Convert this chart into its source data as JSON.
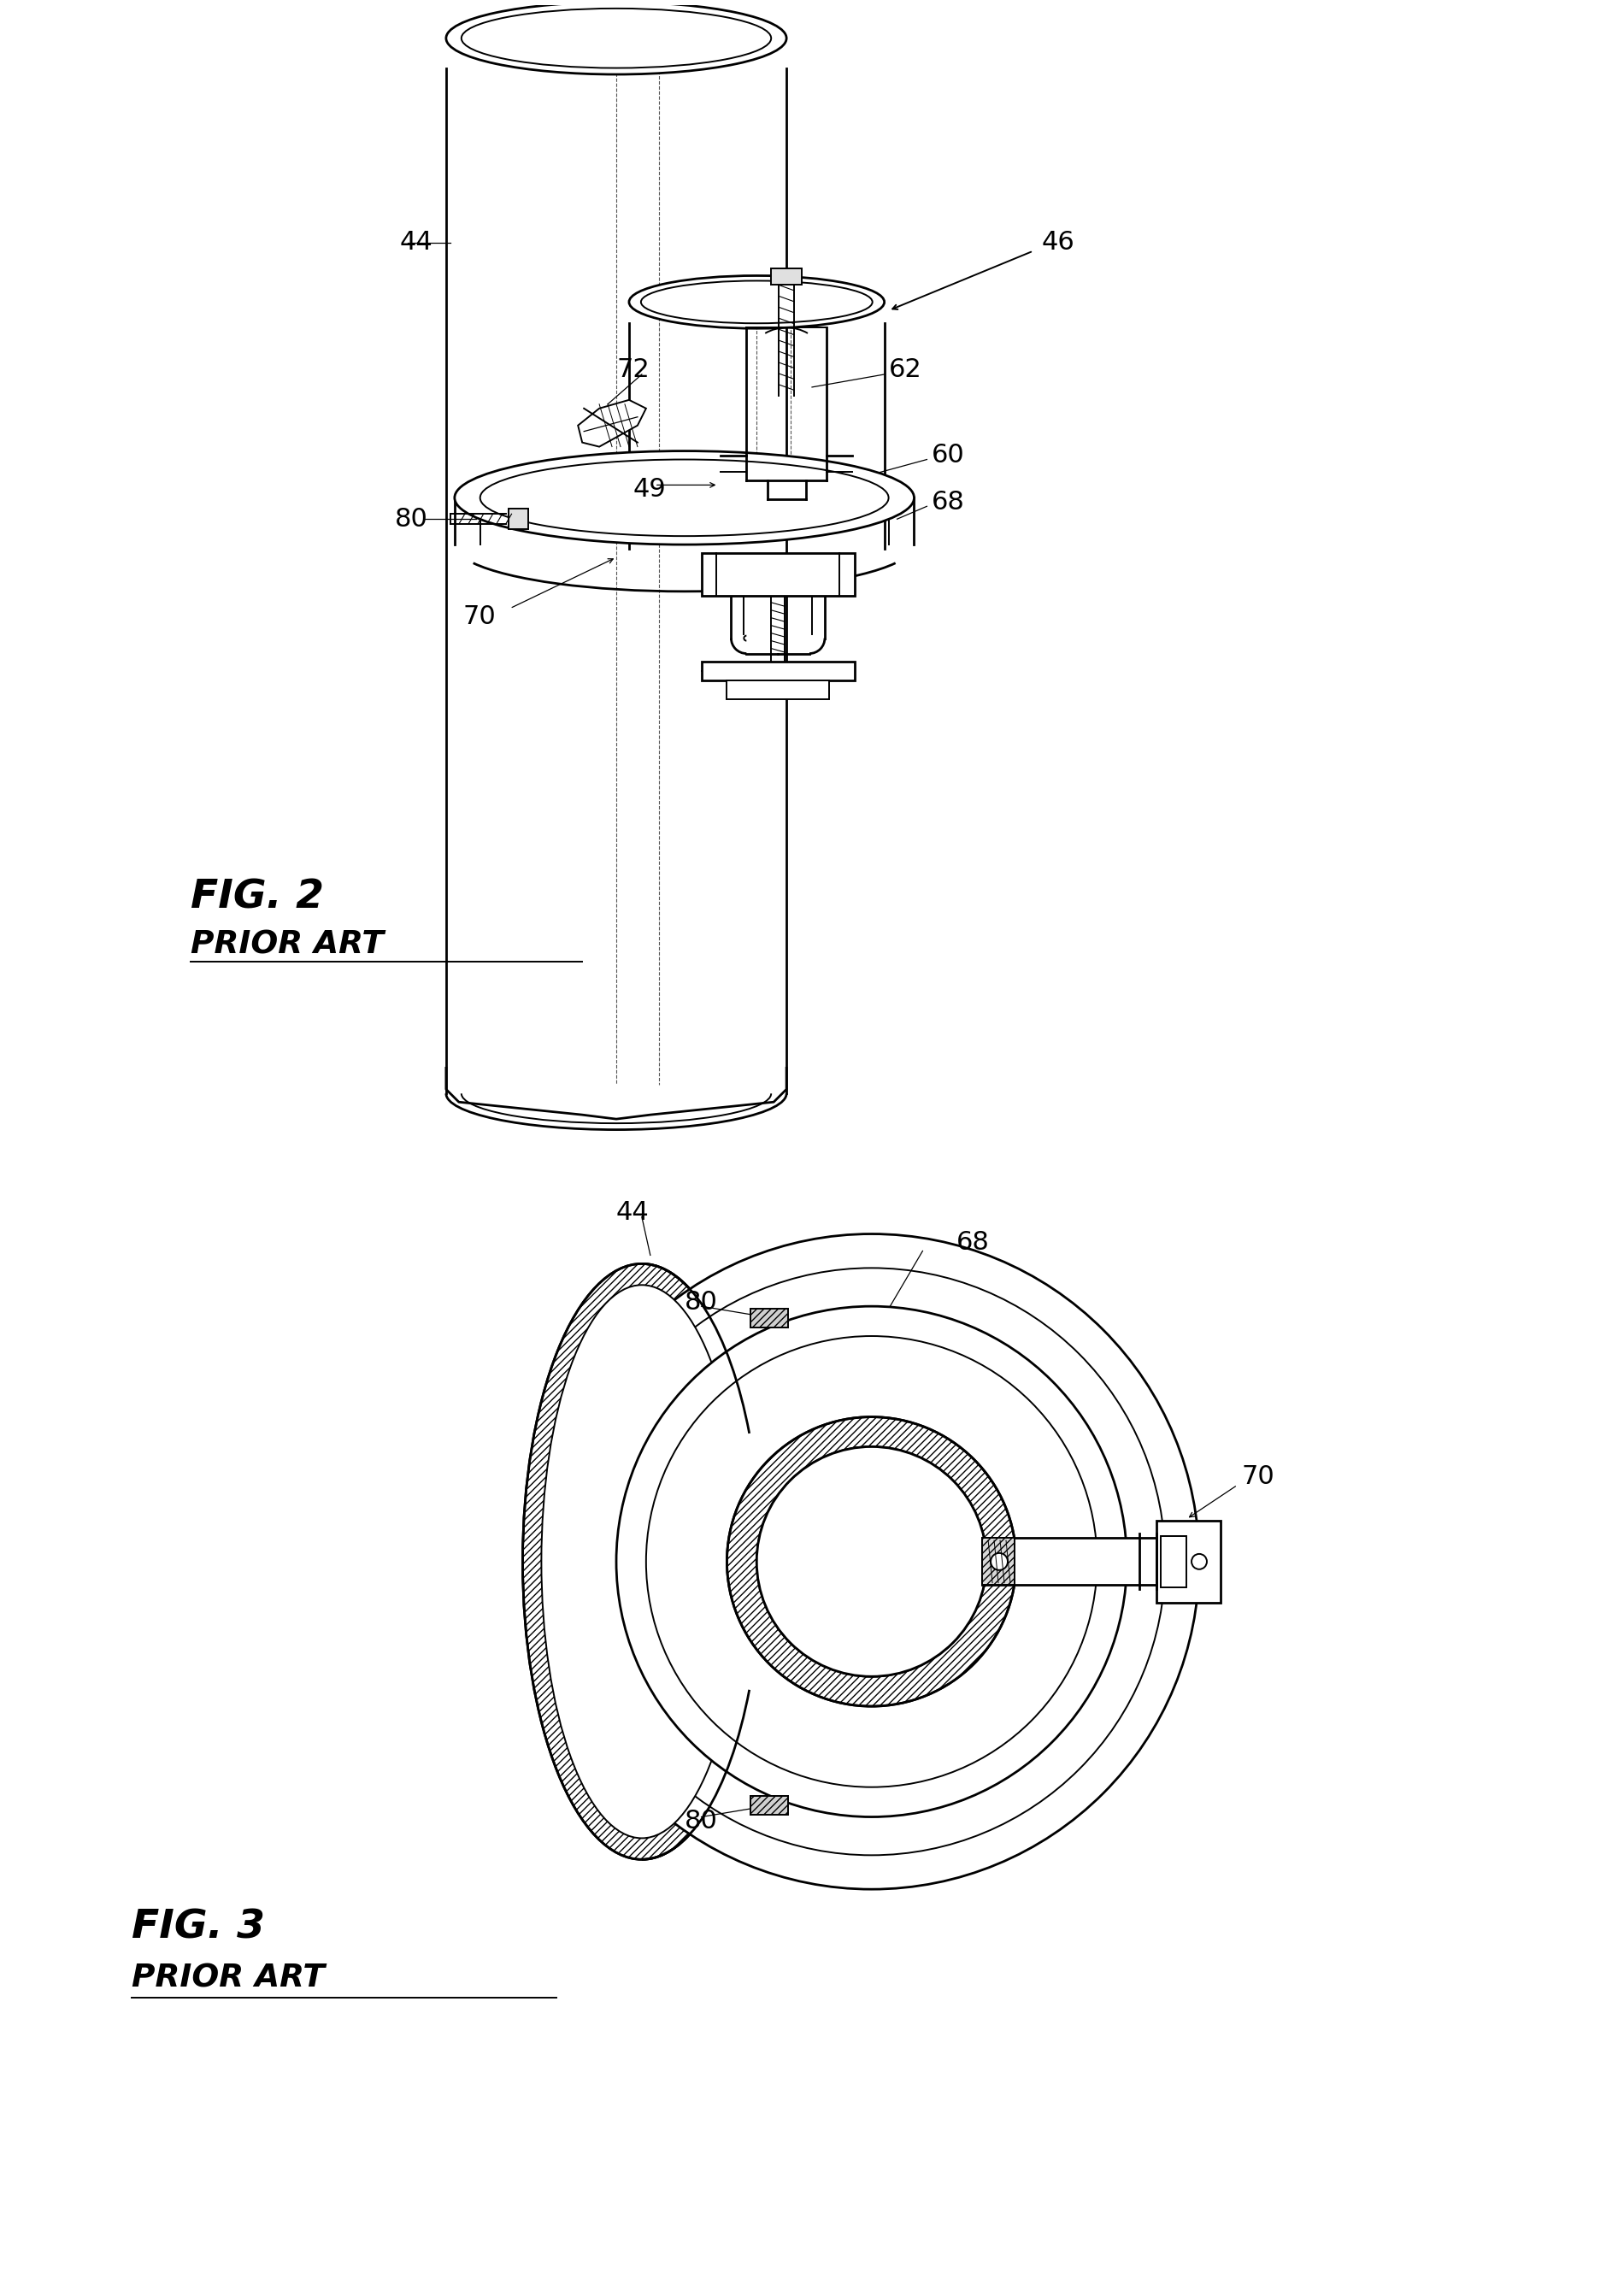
{
  "fig_width": 19.0,
  "fig_height": 26.79,
  "bg_color": "#ffffff",
  "line_color": "#000000",
  "fig2_label": "FIG. 2",
  "fig2_sub": "PRIOR ART",
  "fig3_label": "FIG. 3",
  "fig3_sub": "PRIOR ART"
}
